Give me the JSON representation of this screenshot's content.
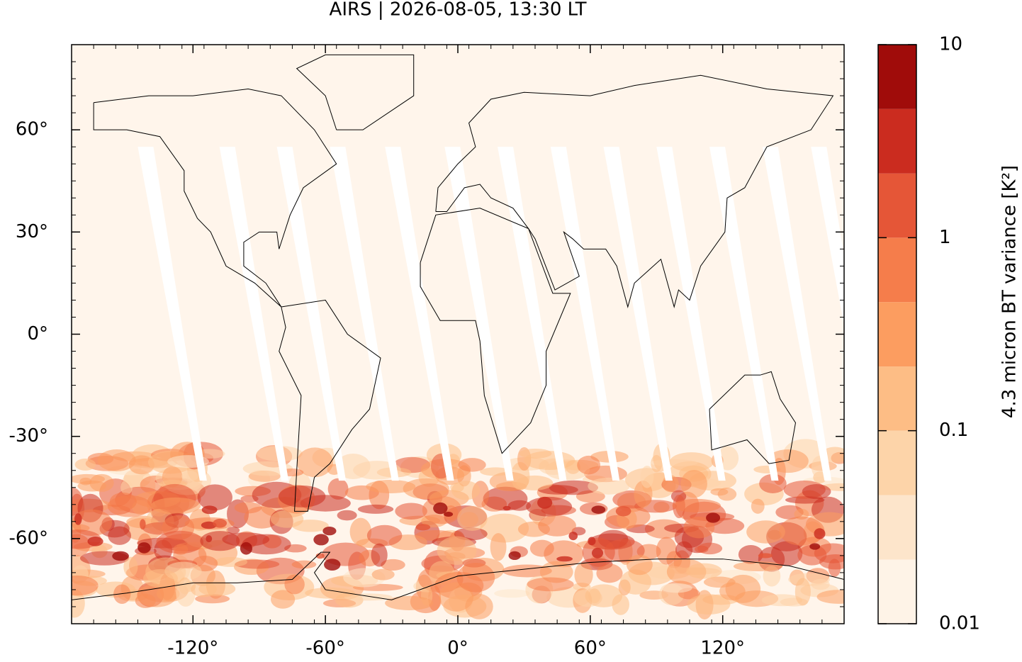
{
  "title": "AIRS | 2026-08-05, 13:30 LT",
  "map": {
    "xlim": [
      -175,
      175
    ],
    "ylim": [
      -85,
      85
    ],
    "xticks": [
      {
        "value": -120,
        "label": "-120°"
      },
      {
        "value": -60,
        "label": "-60°"
      },
      {
        "value": 0,
        "label": "0°"
      },
      {
        "value": 60,
        "label": "60°"
      },
      {
        "value": 120,
        "label": "120°"
      }
    ],
    "yticks": [
      {
        "value": -60,
        "label": "-60°"
      },
      {
        "value": -30,
        "label": "-30°"
      },
      {
        "value": 0,
        "label": "0°"
      },
      {
        "value": 30,
        "label": "30°"
      },
      {
        "value": 60,
        "label": "60°"
      }
    ],
    "background": "#fff5eb"
  },
  "colorbar": {
    "label": "4.3 micron BT variance [K²]",
    "log_scale": true,
    "lim": [
      0.01,
      10
    ],
    "ticks": [
      0.01,
      0.1,
      1,
      10
    ],
    "levels": [
      0.01,
      0.0215,
      0.0464,
      0.1,
      0.215,
      0.464,
      1,
      2.15,
      4.64,
      10
    ],
    "colors": [
      "#fef3e7",
      "#fde5cb",
      "#fdd4a9",
      "#fdbd85",
      "#fc9d60",
      "#f57d4b",
      "#e55637",
      "#cb2c1f",
      "#a00c0a"
    ]
  }
}
